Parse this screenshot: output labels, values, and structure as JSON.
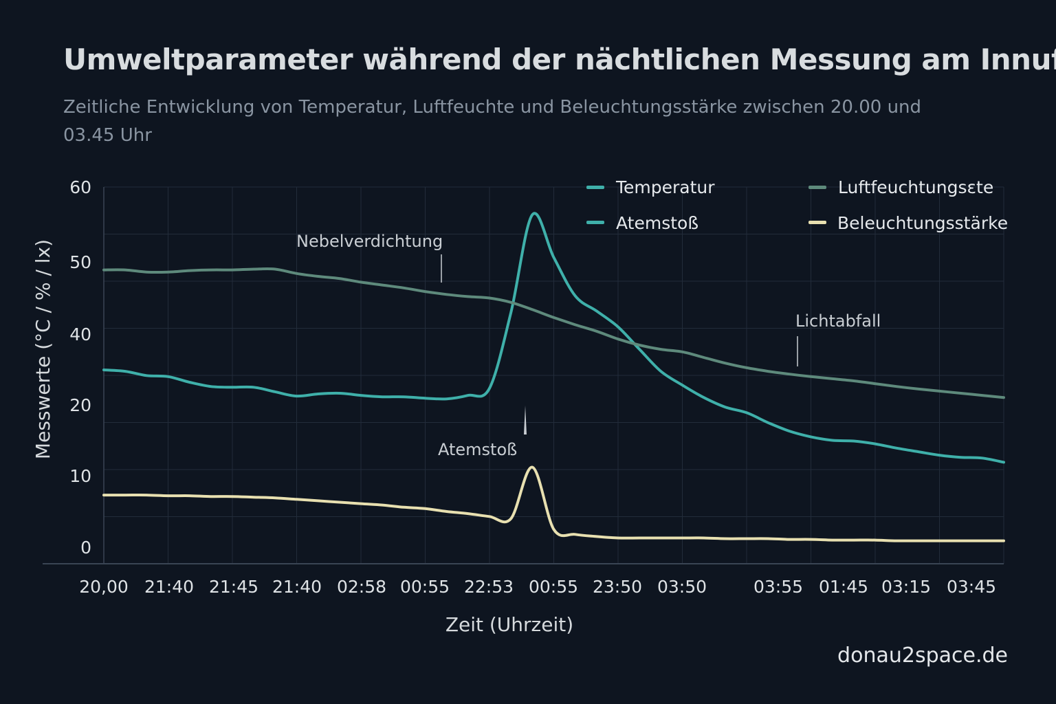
{
  "chart_data": {
    "type": "line",
    "title": "Umweltparameter während der nächtlichen Messung am Innufer",
    "subtitle": "Zeitliche Entwicklung von Temperatur, Luftfeuchte und Beleuchtungsstärke zwischen 20.00 und 03.45 Uhr",
    "xlabel": "Zeit (Uhrzeit)",
    "ylabel": "Messwerte (°C / % / lx)",
    "x_tick_labels": [
      "20,00",
      "21:40",
      "21:45",
      "21:40",
      "02:58",
      "00:55",
      "22:53",
      "00:55",
      "23:50",
      "03:50",
      "03:55",
      "01:45",
      "03:15",
      "03:45"
    ],
    "y_tick_labels": [
      "0",
      "10",
      "20",
      "40",
      "50",
      "60"
    ],
    "ylim": [
      0,
      60
    ],
    "grid": true,
    "legend_placement": "top-right",
    "legend": [
      {
        "label": "Temperatur",
        "color": "#3fb0aa"
      },
      {
        "label": "Luftfeuchtungsɛte",
        "color": "#5e8a7c"
      },
      {
        "label": "Atemstoß",
        "color": "#3fb0aa"
      },
      {
        "label": "Beleuchtungsstärke",
        "color": "#e8e0b0"
      }
    ],
    "series": [
      {
        "name": "Temperatur",
        "color": "#3fb0aa",
        "values": [
          29.9,
          29.5,
          28.3,
          28.0,
          26.4,
          25.2,
          25.0,
          25.0,
          23.7,
          22.5,
          23.1,
          23.3,
          22.7,
          22.3,
          22.3,
          21.9,
          21.7,
          22.7,
          24.7,
          43.0,
          56.3,
          50.6,
          45.3,
          43.2,
          41.0,
          35.7,
          29.5,
          25.6,
          22.1,
          19.7,
          18.9,
          17.5,
          16.3,
          15.5,
          15.0,
          14.9,
          14.5,
          13.9,
          13.4,
          12.9,
          12.6,
          12.5,
          11.9
        ]
      },
      {
        "name": "Luftfeuchtungsɛte",
        "color": "#5e8a7c",
        "values": [
          48.9,
          48.9,
          48.6,
          48.6,
          48.8,
          48.9,
          48.9,
          49.0,
          49.0,
          48.4,
          48.0,
          47.7,
          47.2,
          46.8,
          46.4,
          45.9,
          45.5,
          45.2,
          45.0,
          44.4,
          43.4,
          42.3,
          41.3,
          40.4,
          38.6,
          36.9,
          35.7,
          35.0,
          33.4,
          31.8,
          30.5,
          29.5,
          28.7,
          28.0,
          27.4,
          26.8,
          26.0,
          25.2,
          24.5,
          23.9,
          23.3,
          22.7,
          22.1
        ]
      },
      {
        "name": "Beleuchtungsstärke",
        "color": "#e8e0b0",
        "values": [
          7.3,
          7.3,
          7.3,
          7.2,
          7.2,
          7.1,
          7.1,
          7.0,
          6.9,
          6.7,
          6.5,
          6.3,
          6.1,
          5.9,
          5.6,
          5.4,
          5.0,
          4.7,
          4.3,
          4.0,
          11.2,
          2.5,
          1.8,
          1.5,
          1.3,
          1.3,
          1.3,
          1.3,
          1.3,
          1.2,
          1.2,
          1.2,
          1.1,
          1.1,
          1.0,
          1.0,
          1.0,
          0.9,
          0.9,
          0.9,
          0.9,
          0.9,
          0.9
        ]
      }
    ],
    "annotations": [
      {
        "text": "Nebelverdichtung"
      },
      {
        "text": "Atemstoß"
      },
      {
        "text": "Lichtabfall"
      }
    ]
  },
  "watermark": "donau2space.de"
}
